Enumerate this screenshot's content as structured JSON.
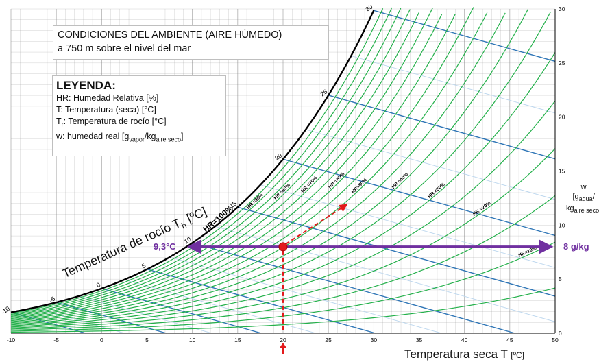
{
  "panels": {
    "conditions": {
      "title": "CONDICIONES DEL AMBIENTE (AIRE HÚMEDO)",
      "subtitle": "a 750 m sobre el nivel del mar"
    },
    "legend": {
      "title": "LEYENDA:",
      "hr": "HR: Humedad Relativa [%]",
      "t": "T: Temperatura (seca) [°C]",
      "tr_a": "T",
      "tr_sub": "r",
      "tr_b": ": Temperatura de rocío [°C]",
      "w_a": "w: humedad real [g",
      "w_sub1": "vapor",
      "w_b": "/kg",
      "w_sub2": "aire seco",
      "w_c": "]"
    }
  },
  "colors": {
    "rh_curve": "#23b04a",
    "saturation": "#000000",
    "dewpoint_line": "#2e75b6",
    "dewpoint_line_light": "#bdd7ee",
    "grid": "#7f7f7f",
    "annotation": "#7030a0",
    "marker": "#e31a1c"
  },
  "chart_data": {
    "type": "line",
    "x_axis": {
      "label": "Temperatura seca T",
      "unit": "[ºC]",
      "range": [
        -10,
        50
      ],
      "ticks": [
        -10,
        -5,
        0,
        5,
        10,
        15,
        20,
        25,
        30,
        35,
        40,
        45,
        50
      ]
    },
    "y_axis": {
      "position": "right",
      "range": [
        0,
        30
      ],
      "ticks": [
        0,
        5,
        10,
        15,
        20,
        25,
        30
      ],
      "label_w": "w",
      "label_a": "[g",
      "label_a_sub": "agua",
      "label_b": "/",
      "label_c": "kg",
      "label_c_sub": "aire seco",
      "label_d": "]"
    },
    "grid": true,
    "relative_humidity_curves": [
      {
        "label": "HR=100%",
        "rh": 100
      },
      {
        "label": "HR =90%",
        "rh": 90
      },
      {
        "label": "HR =80%",
        "rh": 80
      },
      {
        "label": "HR =70%",
        "rh": 70
      },
      {
        "label": "HR =60%",
        "rh": 60
      },
      {
        "label": "HR=50%",
        "rh": 50
      },
      {
        "label": "HR =40%",
        "rh": 40
      },
      {
        "label": "HR =30%",
        "rh": 30
      },
      {
        "label": "HR =20%",
        "rh": 20
      },
      {
        "label": "HR=10%",
        "rh": 10
      }
    ],
    "dewpoint_axis_label": "Temperatura de rocío T",
    "dewpoint_axis_sub": "h",
    "dewpoint_axis_unit": "[ºC]",
    "dewpoint_ticks": [
      "-10",
      "-5",
      "0",
      "5",
      "10",
      "15",
      "20",
      "25",
      "30"
    ],
    "state_point": {
      "T": 20,
      "w": 8,
      "rh": 55
    },
    "annotations": {
      "dewpoint_value": "9,3°C",
      "humidity_value": "8 g/kg"
    }
  }
}
